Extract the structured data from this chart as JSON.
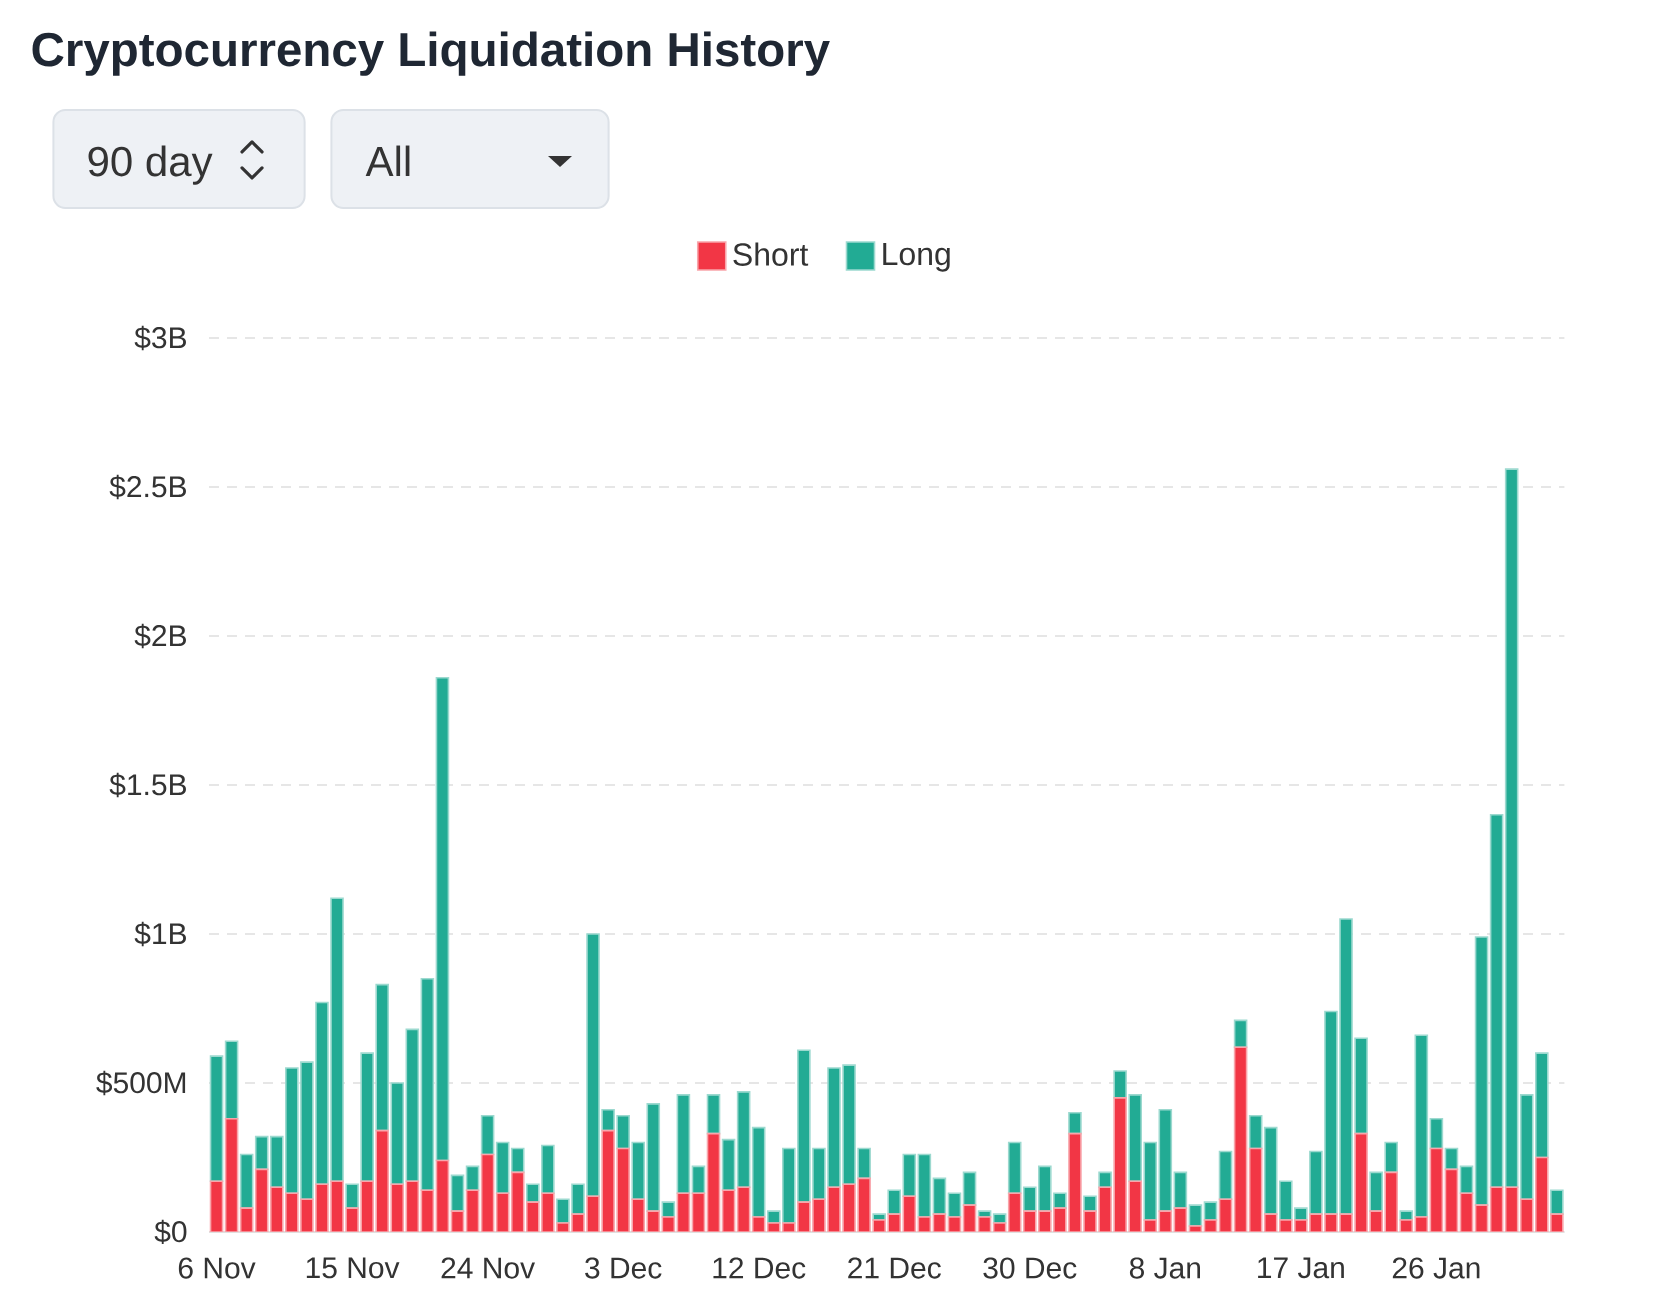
{
  "chart_data": {
    "type": "bar",
    "title": "Cryptocurrency Liquidation History",
    "annotations": [
      "90 day",
      "All"
    ],
    "categories": [
      "6 Nov",
      null,
      null,
      null,
      null,
      null,
      null,
      null,
      null,
      "15 Nov",
      null,
      null,
      null,
      null,
      null,
      null,
      null,
      null,
      "24 Nov",
      null,
      null,
      null,
      null,
      null,
      null,
      null,
      null,
      "3 Dec",
      null,
      null,
      null,
      null,
      null,
      null,
      null,
      null,
      "12 Dec",
      null,
      null,
      null,
      null,
      null,
      null,
      null,
      null,
      "21 Dec",
      null,
      null,
      null,
      null,
      null,
      null,
      null,
      null,
      "30 Dec",
      null,
      null,
      null,
      null,
      null,
      null,
      null,
      null,
      "8 Jan",
      null,
      null,
      null,
      null,
      null,
      null,
      null,
      null,
      "17 Jan",
      null,
      null,
      null,
      null,
      null,
      null,
      null,
      null,
      "26 Jan",
      null,
      null,
      null,
      null,
      null,
      null,
      null,
      null
    ],
    "series": [
      {
        "name": "Short",
        "color": "#f23645",
        "values": [
          170000000.0,
          380000000.0,
          80000000.0,
          210000000.0,
          150000000.0,
          130000000.0,
          110000000.0,
          160000000.0,
          170000000.0,
          80000000.0,
          170000000.0,
          340000000.0,
          160000000.0,
          170000000.0,
          140000000.0,
          240000000.0,
          70000000.0,
          140000000.0,
          260000000.0,
          130000000.0,
          200000000.0,
          100000000.0,
          130000000.0,
          30000000.0,
          60000000.0,
          120000000.0,
          340000000.0,
          280000000.0,
          110000000.0,
          70000000.0,
          50000000.0,
          130000000.0,
          130000000.0,
          330000000.0,
          140000000.0,
          150000000.0,
          50000000.0,
          30000000.0,
          30000000.0,
          100000000.0,
          110000000.0,
          150000000.0,
          160000000.0,
          180000000.0,
          40000000.0,
          60000000.0,
          120000000.0,
          50000000.0,
          60000000.0,
          50000000.0,
          90000000.0,
          50000000.0,
          30000000.0,
          130000000.0,
          70000000.0,
          70000000.0,
          80000000.0,
          330000000.0,
          70000000.0,
          150000000.0,
          450000000.0,
          170000000.0,
          40000000.0,
          70000000.0,
          80000000.0,
          20000000.0,
          40000000.0,
          110000000.0,
          620000000.0,
          280000000.0,
          60000000.0,
          40000000.0,
          40000000.0,
          60000000.0,
          60000000.0,
          60000000.0,
          330000000.0,
          70000000.0,
          200000000.0,
          40000000.0,
          50000000.0,
          280000000.0,
          210000000.0,
          130000000.0,
          90000000.0,
          150000000.0,
          150000000.0,
          110000000.0,
          250000000.0,
          60000000.0
        ]
      },
      {
        "name": "Long",
        "color": "#22ab94",
        "values": [
          420000000.0,
          260000000.0,
          180000000.0,
          110000000.0,
          170000000.0,
          420000000.0,
          460000000.0,
          610000000.0,
          950000000.0,
          80000000.0,
          430000000.0,
          490000000.0,
          340000000.0,
          510000000.0,
          710000000.0,
          1620000000.0,
          120000000.0,
          80000000.0,
          130000000.0,
          170000000.0,
          80000000.0,
          60000000.0,
          160000000.0,
          80000000.0,
          100000000.0,
          880000000.0,
          70000000.0,
          110000000.0,
          190000000.0,
          360000000.0,
          50000000.0,
          330000000.0,
          90000000.0,
          130000000.0,
          170000000.0,
          320000000.0,
          300000000.0,
          40000000.0,
          250000000.0,
          510000000.0,
          170000000.0,
          400000000.0,
          400000000.0,
          100000000.0,
          20000000.0,
          80000000.0,
          140000000.0,
          210000000.0,
          120000000.0,
          80000000.0,
          110000000.0,
          20000000.0,
          30000000.0,
          170000000.0,
          80000000.0,
          150000000.0,
          50000000.0,
          70000000.0,
          50000000.0,
          50000000.0,
          90000000.0,
          290000000.0,
          260000000.0,
          340000000.0,
          120000000.0,
          70000000.0,
          60000000.0,
          160000000.0,
          90000000.0,
          110000000.0,
          290000000.0,
          130000000.0,
          40000000.0,
          210000000.0,
          680000000.0,
          990000000.0,
          320000000.0,
          130000000.0,
          100000000.0,
          30000000.0,
          610000000.0,
          100000000.0,
          70000000.0,
          90000000.0,
          900000000.0,
          1250000000.0,
          2410000000.0,
          350000000.0,
          350000000.0,
          80000000.0
        ]
      }
    ],
    "stacked": true,
    "ylim": [
      0,
      3000000000.0
    ],
    "yticks": [
      {
        "value": 0,
        "label": "$0"
      },
      {
        "value": 500000000.0,
        "label": "$500M"
      },
      {
        "value": 1000000000.0,
        "label": "$1B"
      },
      {
        "value": 1500000000.0,
        "label": "$1.5B"
      },
      {
        "value": 2000000000.0,
        "label": "$2B"
      },
      {
        "value": 2500000000.0,
        "label": "$2.5B"
      },
      {
        "value": 3000000000.0,
        "label": "$3B"
      }
    ],
    "grid": "y",
    "legend": "top"
  }
}
